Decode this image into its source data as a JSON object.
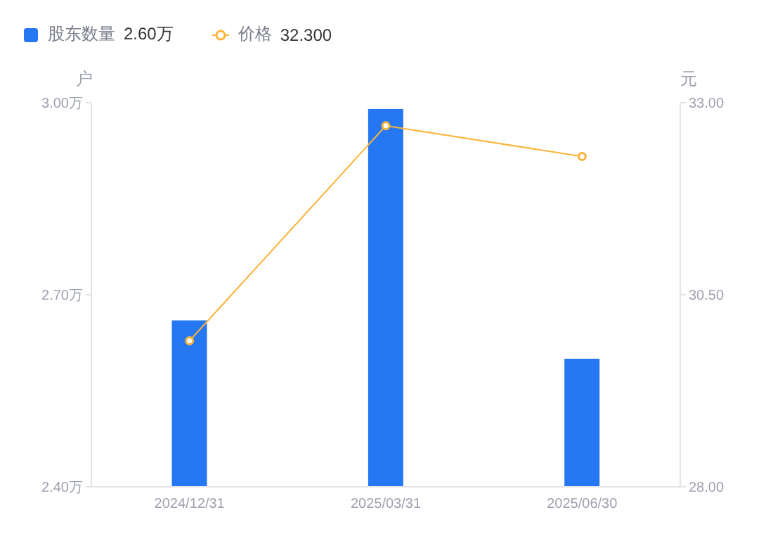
{
  "chart_data": {
    "type": "bar",
    "categories": [
      "2024/12/31",
      "2025/03/31",
      "2025/06/30"
    ],
    "series": [
      {
        "name": "股东数量",
        "color": "#2577f4",
        "values": [
          2.66,
          2.99,
          2.6
        ]
      },
      {
        "name": "价格",
        "type": "line",
        "axis": "y2",
        "color": "#fbb43a",
        "values": [
          29.9,
          32.7,
          32.3
        ],
        "marker": "circle"
      }
    ],
    "ylabel": "户",
    "y2label": "元",
    "ylim": [
      2.4,
      3.0
    ],
    "yticks": [
      {
        "value": 2.4,
        "label": "2.40万"
      },
      {
        "value": 2.7,
        "label": "2.70万"
      },
      {
        "value": 3.0,
        "label": "3.00万"
      }
    ],
    "y2lim": [
      28,
      33
    ],
    "y2ticks": [
      {
        "value": 28,
        "label": "28.00"
      },
      {
        "value": 30.5,
        "label": "30.50"
      },
      {
        "value": 33,
        "label": "33.00"
      }
    ],
    "annotations": [
      "2.60万",
      "32.300"
    ],
    "legend": "top left"
  }
}
